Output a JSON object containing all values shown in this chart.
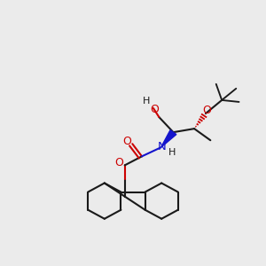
{
  "bg_color": "#ebebeb",
  "bond_color": "#1a1a1a",
  "oxygen_color": "#cc0000",
  "nitrogen_color": "#1414cc",
  "fig_w": 3.0,
  "fig_h": 3.0,
  "dpi": 100,
  "xlim": [
    0.0,
    1.0
  ],
  "ylim": [
    0.0,
    1.0
  ],
  "lw": 1.5
}
